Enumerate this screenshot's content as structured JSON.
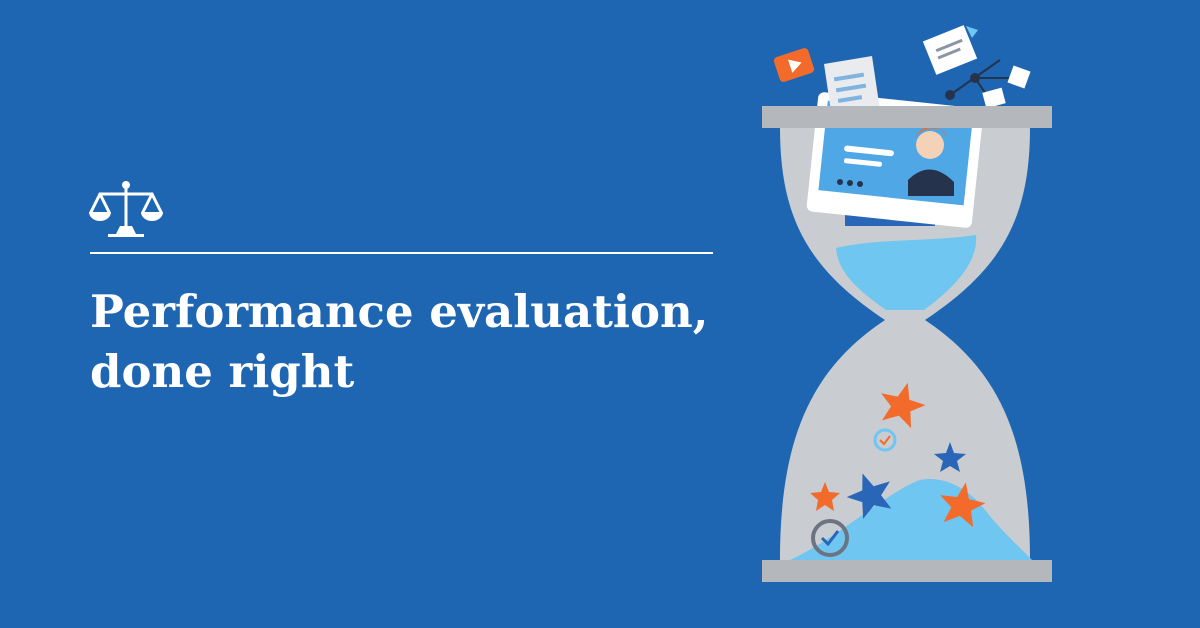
{
  "headline": {
    "line1": "Performance evaluation,",
    "line2": "done right"
  },
  "colors": {
    "background": "#1e66b2",
    "text": "#ffffff",
    "hourglass_glass": "#c9ccd1",
    "hourglass_frame": "#b4b7bb",
    "sand": "#6fc6f0",
    "accent_orange": "#f26b2a",
    "accent_blue": "#2a66b8"
  },
  "icons": {
    "logo": "scales-icon",
    "illustration": "hourglass-illustration"
  }
}
